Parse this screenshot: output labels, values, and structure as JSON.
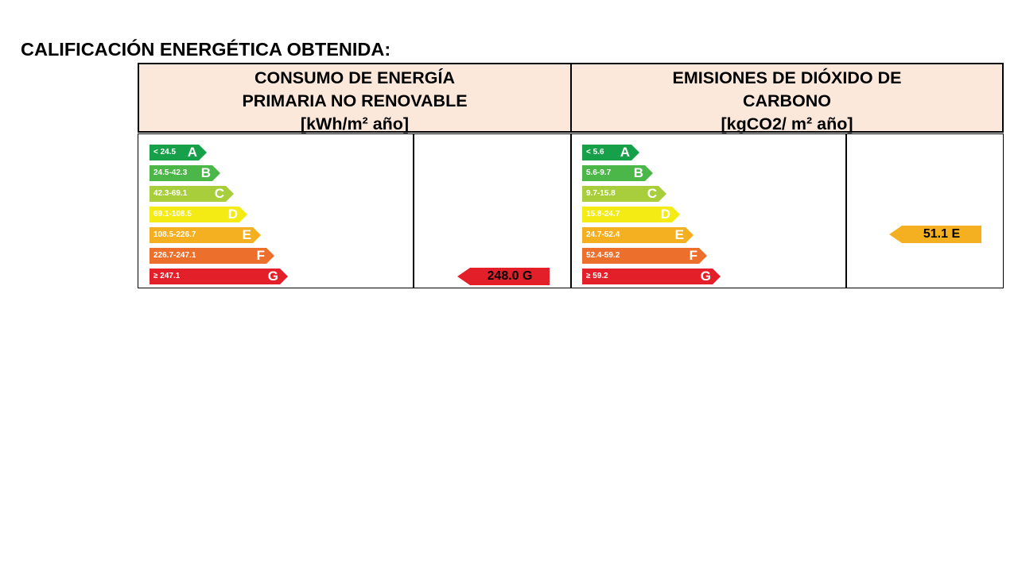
{
  "page_title": "CALIFICACIÓN ENERGÉTICA OBTENIDA:",
  "energy": {
    "header": [
      "CONSUMO DE ENERGÍA",
      "PRIMARIA NO RENOVABLE",
      "[kWh/m² año]"
    ],
    "scale": [
      {
        "range": "< 24.5",
        "letter": "A",
        "color": "#16a04a"
      },
      {
        "range": "24.5-42.3",
        "letter": "B",
        "color": "#4bb749"
      },
      {
        "range": "42.3-69.1",
        "letter": "C",
        "color": "#a8cf3b"
      },
      {
        "range": "69.1-108.5",
        "letter": "D",
        "color": "#f4ea14"
      },
      {
        "range": "108.5-226.7",
        "letter": "E",
        "color": "#f5b022"
      },
      {
        "range": "226.7-247.1",
        "letter": "F",
        "color": "#ec6f2b"
      },
      {
        "range": "≥ 247.1",
        "letter": "G",
        "color": "#e3202a"
      }
    ],
    "result": {
      "value": "248.0 G",
      "color": "#e3202a"
    }
  },
  "emissions": {
    "header": [
      "EMISIONES DE DIÓXIDO DE",
      "CARBONO",
      "[kgCO2/ m² año]"
    ],
    "scale": [
      {
        "range": "< 5.6",
        "letter": "A",
        "color": "#16a04a"
      },
      {
        "range": "5.6-9.7",
        "letter": "B",
        "color": "#4bb749"
      },
      {
        "range": "9.7-15.8",
        "letter": "C",
        "color": "#a8cf3b"
      },
      {
        "range": "15.8-24.7",
        "letter": "D",
        "color": "#f4ea14"
      },
      {
        "range": "24.7-52.4",
        "letter": "E",
        "color": "#f5b022"
      },
      {
        "range": "52.4-59.2",
        "letter": "F",
        "color": "#ec6f2b"
      },
      {
        "range": "≥ 59.2",
        "letter": "G",
        "color": "#e3202a"
      }
    ],
    "result": {
      "value": "51.1 E",
      "color": "#f5b022"
    }
  }
}
